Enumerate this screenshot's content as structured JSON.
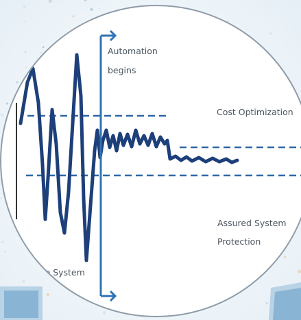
{
  "labels": {
    "automation": "Automation",
    "begins": "begins",
    "cost_optimization": "Cost Optimization",
    "assured": "Assured System",
    "protection": "Protection",
    "system_partial": "le System"
  },
  "colors": {
    "line": "#1d3f7a",
    "dashed": "#2d66a8",
    "arrow": "#2f73b5",
    "text": "#4a5560",
    "circle_fill": "#ffffff",
    "circle_edge": "#9aa7b3",
    "background": "#f4f8fb",
    "laptop": "#8ab4d4"
  }
}
